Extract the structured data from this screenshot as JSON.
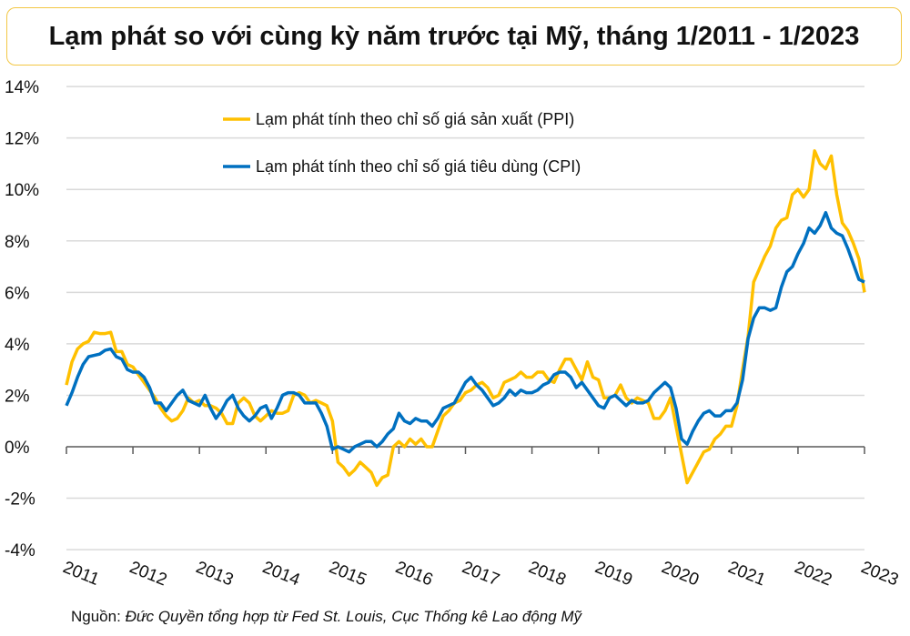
{
  "chart_data": {
    "type": "line",
    "title": "Lạm phát so với cùng kỳ năm trước tại Mỹ, tháng 1/2011 - 1/2023",
    "xlabel": "",
    "ylabel": "",
    "x_start": "2011-01",
    "x_end": "2023-01",
    "frequency": "monthly",
    "xticks": [
      "2011",
      "2012",
      "2013",
      "2014",
      "2015",
      "2016",
      "2017",
      "2018",
      "2019",
      "2020",
      "2021",
      "2022",
      "2023"
    ],
    "yticks": [
      "14%",
      "12%",
      "10%",
      "8%",
      "6%",
      "4%",
      "2%",
      "0%",
      "-2%",
      "-4%"
    ],
    "ylim": [
      -4,
      14
    ],
    "grid": true,
    "legend_position": "top-center",
    "series": [
      {
        "name": "Lạm phát tính theo chỉ số giá sản xuất (PPI)",
        "color": "#ffc000",
        "values": [
          2.4,
          3.3,
          3.8,
          4.0,
          4.1,
          4.45,
          4.4,
          4.4,
          4.45,
          3.7,
          3.7,
          3.2,
          3.1,
          2.8,
          2.5,
          2.2,
          1.9,
          1.5,
          1.2,
          1.0,
          1.1,
          1.4,
          1.9,
          1.7,
          1.8,
          1.6,
          1.6,
          1.5,
          1.3,
          0.9,
          0.9,
          1.7,
          1.9,
          1.7,
          1.2,
          1.0,
          1.2,
          1.4,
          1.3,
          1.3,
          1.4,
          2.0,
          2.1,
          2.0,
          1.7,
          1.8,
          1.7,
          1.6,
          1.0,
          -0.6,
          -0.8,
          -1.1,
          -0.9,
          -0.6,
          -0.8,
          -1.0,
          -1.5,
          -1.2,
          -1.1,
          0.0,
          0.2,
          0.0,
          0.3,
          0.1,
          0.3,
          0.0,
          0.0,
          0.6,
          1.2,
          1.4,
          1.7,
          1.8,
          2.1,
          2.2,
          2.4,
          2.5,
          2.3,
          1.9,
          2.0,
          2.5,
          2.6,
          2.7,
          2.9,
          2.7,
          2.7,
          2.9,
          2.9,
          2.6,
          2.5,
          3.0,
          3.4,
          3.4,
          3.0,
          2.6,
          3.3,
          2.7,
          2.6,
          1.9,
          1.9,
          2.0,
          2.4,
          1.9,
          1.7,
          1.9,
          1.8,
          1.7,
          1.1,
          1.1,
          1.4,
          1.9,
          0.8,
          -0.3,
          -1.4,
          -1.0,
          -0.6,
          -0.2,
          -0.1,
          0.3,
          0.5,
          0.8,
          0.8,
          1.6,
          3.0,
          4.3,
          6.4,
          6.9,
          7.4,
          7.8,
          8.5,
          8.8,
          8.9,
          9.8,
          10.0,
          9.7,
          10.0,
          11.5,
          11.0,
          10.8,
          11.3,
          9.8,
          8.7,
          8.4,
          7.9,
          7.3,
          6.0
        ]
      },
      {
        "name": "Lạm phát tính theo chỉ số giá tiêu dùng (CPI)",
        "color": "#0070c0",
        "values": [
          1.6,
          2.1,
          2.7,
          3.2,
          3.5,
          3.55,
          3.6,
          3.75,
          3.8,
          3.5,
          3.4,
          3.0,
          2.9,
          2.9,
          2.7,
          2.3,
          1.7,
          1.7,
          1.4,
          1.7,
          2.0,
          2.2,
          1.8,
          1.7,
          1.6,
          2.0,
          1.5,
          1.1,
          1.4,
          1.8,
          2.0,
          1.5,
          1.2,
          1.0,
          1.2,
          1.5,
          1.6,
          1.1,
          1.5,
          2.0,
          2.1,
          2.1,
          2.0,
          1.7,
          1.7,
          1.7,
          1.3,
          0.8,
          -0.1,
          0.0,
          -0.1,
          -0.2,
          0.0,
          0.1,
          0.2,
          0.2,
          0.0,
          0.2,
          0.5,
          0.7,
          1.3,
          1.0,
          0.9,
          1.1,
          1.0,
          1.0,
          0.8,
          1.1,
          1.5,
          1.6,
          1.7,
          2.1,
          2.5,
          2.7,
          2.4,
          2.2,
          1.9,
          1.6,
          1.7,
          1.9,
          2.2,
          2.0,
          2.2,
          2.1,
          2.1,
          2.2,
          2.4,
          2.5,
          2.8,
          2.9,
          2.9,
          2.7,
          2.3,
          2.5,
          2.2,
          1.9,
          1.6,
          1.5,
          1.9,
          2.0,
          1.8,
          1.6,
          1.8,
          1.7,
          1.7,
          1.8,
          2.1,
          2.3,
          2.5,
          2.3,
          1.5,
          0.3,
          0.1,
          0.6,
          1.0,
          1.3,
          1.4,
          1.2,
          1.2,
          1.4,
          1.4,
          1.7,
          2.6,
          4.2,
          5.0,
          5.4,
          5.4,
          5.3,
          5.4,
          6.2,
          6.8,
          7.0,
          7.5,
          7.9,
          8.5,
          8.3,
          8.6,
          9.1,
          8.5,
          8.3,
          8.2,
          7.7,
          7.1,
          6.5,
          6.4
        ]
      }
    ],
    "source_label": "Nguồn:",
    "source_text": "Đức Quyền tổng hợp từ Fed St. Louis, Cục Thống kê Lao động Mỹ"
  }
}
